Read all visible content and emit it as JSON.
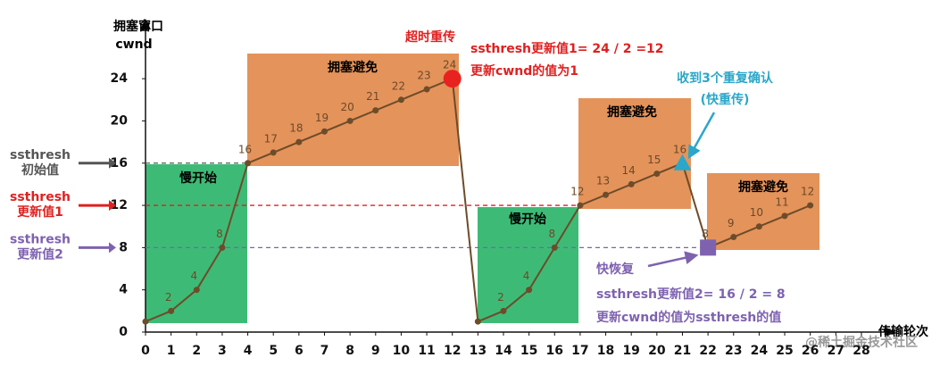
{
  "chart_data": {
    "type": "line",
    "y_label": [
      "拥塞窗口",
      "cwnd"
    ],
    "x_label": "传输轮次",
    "x": [
      0,
      1,
      2,
      3,
      4,
      5,
      6,
      7,
      8,
      9,
      10,
      11,
      12,
      13,
      14,
      15,
      16,
      17,
      18,
      19,
      20,
      21,
      22,
      23,
      24,
      25,
      26
    ],
    "values": [
      1,
      2,
      4,
      8,
      16,
      17,
      18,
      19,
      20,
      21,
      22,
      23,
      24,
      1,
      2,
      4,
      8,
      12,
      13,
      14,
      15,
      16,
      8,
      9,
      10,
      11,
      12
    ],
    "value_labels": [
      null,
      "2",
      "4",
      "8",
      "16",
      "17",
      "18",
      "19",
      "20",
      "21",
      "22",
      "23",
      "24",
      null,
      "2",
      "4",
      "8",
      "12",
      "13",
      "14",
      "15",
      "16",
      "8",
      "9",
      "10",
      "11",
      "12"
    ],
    "color": "#6d4c2a",
    "xlim": [
      0,
      29
    ],
    "ylim": [
      0,
      29
    ],
    "xticks": [
      0,
      1,
      2,
      3,
      4,
      5,
      6,
      7,
      8,
      9,
      10,
      11,
      12,
      13,
      14,
      15,
      16,
      17,
      18,
      19,
      20,
      21,
      22,
      23,
      24,
      25,
      26,
      27,
      28
    ],
    "yticks": [
      0,
      4,
      8,
      12,
      16,
      20,
      24
    ],
    "thresholds": [
      {
        "label": [
          "ssthresh",
          "初始值"
        ],
        "value": 16,
        "color": "#555555"
      },
      {
        "label": [
          "ssthresh",
          "更新值1"
        ],
        "value": 12,
        "color": "#e02020"
      },
      {
        "label": [
          "ssthresh",
          "更新值2"
        ],
        "value": 8,
        "color": "#7e62b0"
      }
    ],
    "regions": [
      "慢开始",
      "拥塞避免",
      "慢开始",
      "拥塞避免",
      "拥塞避免"
    ],
    "annotations": {
      "timeout": "超时重传",
      "update1": "ssthresh更新值1= 24 / 2 =12",
      "reset": "更新cwnd的值为1",
      "dupack": "收到3个重复确认",
      "fast_retransmit": "(快重传)",
      "fast_recovery": "快恢复",
      "update2": "ssthresh更新值2= 16 / 2 = 8",
      "set_cwnd": "更新cwnd的值为ssthresh的值",
      "watermark": "@稀土掘金技术社区"
    }
  }
}
